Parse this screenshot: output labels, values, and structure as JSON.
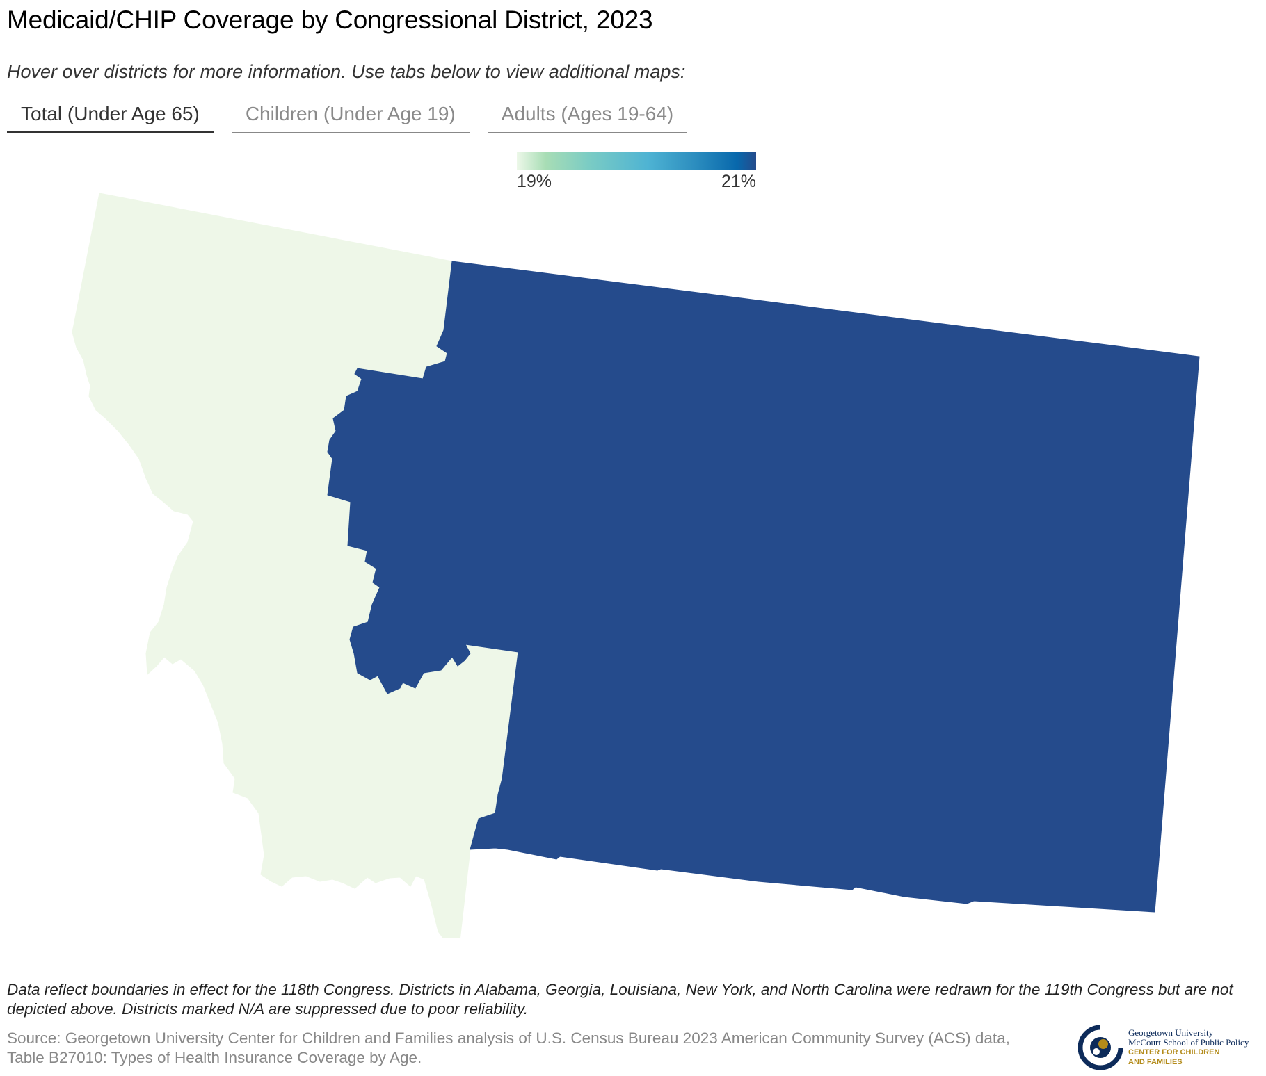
{
  "header": {
    "title": "Medicaid/CHIP Coverage by Congressional District, 2023",
    "subtitle": "Hover over districts for more information. Use tabs below to view additional maps:"
  },
  "tabs": [
    {
      "label": "Total (Under Age 65)",
      "active": true
    },
    {
      "label": "Children (Under Age 19)",
      "active": false
    },
    {
      "label": "Adults (Ages 19-64)",
      "active": false
    }
  ],
  "legend": {
    "min_label": "19%",
    "max_label": "21%",
    "color_low": "#edf8e9",
    "color_high": "#254b8c"
  },
  "map": {
    "districts": [
      {
        "color": "#eef7e8",
        "value_level": "low"
      },
      {
        "color": "#254b8c",
        "value_level": "high"
      }
    ]
  },
  "footer": {
    "note": "Data reflect boundaries in effect for the 118th Congress. Districts in Alabama, Georgia, Louisiana, New York, and North Carolina were redrawn for the 119th Congress but are not depicted above. Districts marked N/A are suppressed due to poor reliability.",
    "source": "Source: Georgetown University Center for Children and Families analysis of U.S. Census Bureau 2023 American Community Survey (ACS) data, Table B27010: Types of Health Insurance Coverage by Age."
  },
  "logo": {
    "line1": "Georgetown University",
    "line2": "McCourt School of Public Policy",
    "line3": "CENTER FOR CHILDREN",
    "line4": "AND FAMILIES",
    "colors": {
      "navy": "#0d2b5a",
      "gold": "#b38b1a"
    }
  }
}
